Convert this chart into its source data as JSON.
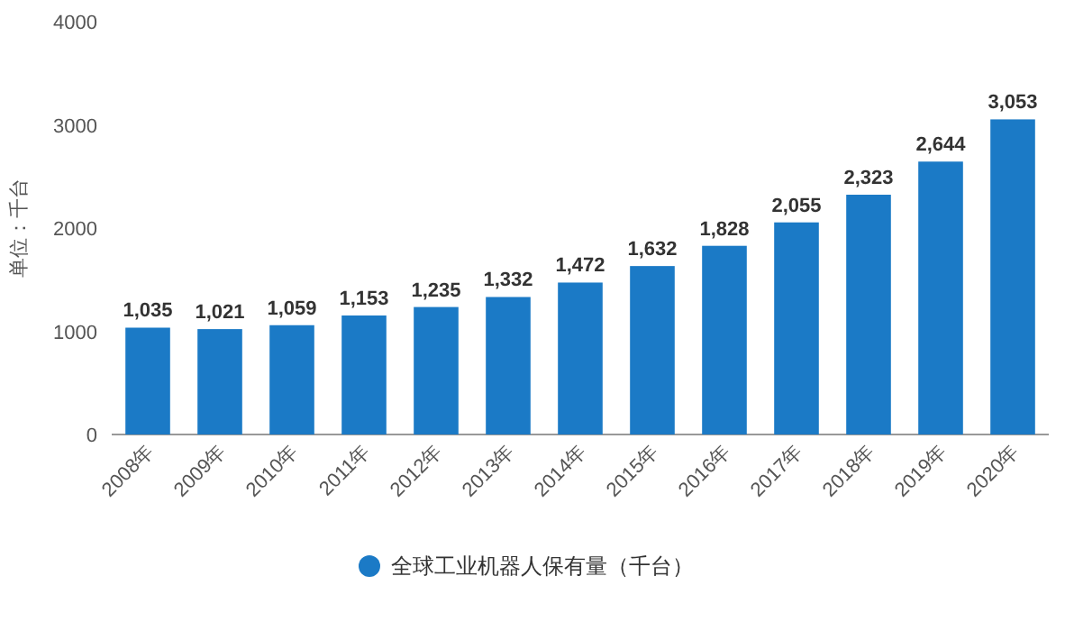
{
  "chart_data": {
    "type": "bar",
    "ylabel": "单位：千台",
    "categories": [
      "2008年",
      "2009年",
      "2010年",
      "2011年",
      "2012年",
      "2013年",
      "2014年",
      "2015年",
      "2016年",
      "2017年",
      "2018年",
      "2019年",
      "2020年"
    ],
    "series": [
      {
        "name": "全球工业机器人保有量（千台）",
        "color": "#1b7ac6",
        "values": [
          1035,
          1021,
          1059,
          1153,
          1235,
          1332,
          1472,
          1632,
          1828,
          2055,
          2323,
          2644,
          3053
        ]
      }
    ],
    "value_labels": [
      "1,035",
      "1,021",
      "1,059",
      "1,153",
      "1,235",
      "1,332",
      "1,472",
      "1,632",
      "1,828",
      "2,055",
      "2,323",
      "2,644",
      "3,053"
    ],
    "ylim": [
      0,
      4000
    ],
    "yticks": [
      0,
      1000,
      2000,
      3000,
      4000
    ],
    "grid": false,
    "legend": "bottom"
  }
}
